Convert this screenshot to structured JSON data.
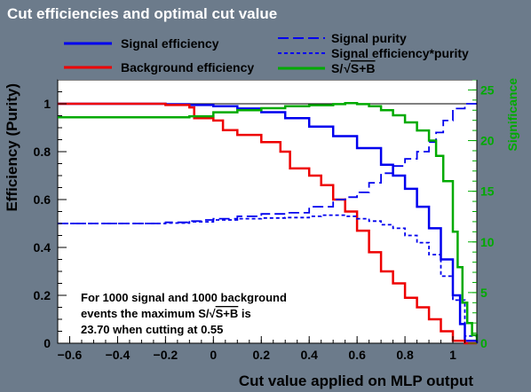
{
  "title": "Cut efficiencies and optimal cut value",
  "chart_data": {
    "type": "line",
    "title": "Cut efficiencies and optimal cut value",
    "xlabel": "Cut value applied on MLP output",
    "ylabel": "Efficiency (Purity)",
    "y2label": "Significance",
    "xlim": [
      -0.65,
      1.1
    ],
    "ylim": [
      0,
      1.1
    ],
    "y2lim": [
      0,
      26
    ],
    "xticks": [
      -0.6,
      -0.4,
      -0.2,
      0,
      0.2,
      0.4,
      0.6,
      0.8,
      1
    ],
    "xtick_labels": [
      "−0.6",
      "−0.4",
      "−0.2",
      "0",
      "0.2",
      "0.4",
      "0.6",
      "0.8",
      "1"
    ],
    "yticks": [
      0,
      0.2,
      0.4,
      0.6,
      0.8,
      1
    ],
    "ytick_labels": [
      "0",
      "0.2",
      "0.4",
      "0.6",
      "0.8",
      "1"
    ],
    "y2ticks": [
      0,
      5,
      10,
      15,
      20,
      25
    ],
    "y2tick_labels": [
      "0",
      "5",
      "10",
      "15",
      "20",
      "25"
    ],
    "legend_placement": "top",
    "colors": {
      "signal": "#0000ee",
      "background": "#ee0000",
      "significance": "#00aa00",
      "frame_bg": "#ffffff",
      "canvas_bg": "#6c7b8b"
    },
    "series": [
      {
        "name": "Signal efficiency",
        "color": "#0000ee",
        "style": "solid",
        "axis": "left",
        "x": [
          -0.65,
          -0.3,
          -0.2,
          -0.1,
          0,
          0.1,
          0.2,
          0.3,
          0.4,
          0.5,
          0.6,
          0.7,
          0.75,
          0.8,
          0.85,
          0.9,
          0.95,
          1.0,
          1.03,
          1.05,
          1.1
        ],
        "y": [
          1.0,
          1.0,
          0.998,
          0.995,
          0.99,
          0.98,
          0.965,
          0.94,
          0.905,
          0.865,
          0.815,
          0.745,
          0.7,
          0.645,
          0.57,
          0.48,
          0.35,
          0.2,
          0.08,
          0.01,
          0.0
        ]
      },
      {
        "name": "Background efficiency",
        "color": "#ee0000",
        "style": "solid",
        "axis": "left",
        "x": [
          -0.65,
          -0.2,
          -0.1,
          -0.08,
          0,
          0.04,
          0.1,
          0.2,
          0.28,
          0.32,
          0.4,
          0.45,
          0.5,
          0.55,
          0.6,
          0.65,
          0.7,
          0.75,
          0.8,
          0.85,
          0.9,
          0.95,
          1.0,
          1.05,
          1.1
        ],
        "y": [
          1.0,
          0.995,
          0.985,
          0.94,
          0.93,
          0.89,
          0.87,
          0.84,
          0.8,
          0.73,
          0.7,
          0.66,
          0.6,
          0.55,
          0.47,
          0.38,
          0.3,
          0.25,
          0.19,
          0.15,
          0.1,
          0.05,
          0.01,
          0.0,
          0.0
        ]
      },
      {
        "name": "Signal purity",
        "color": "#0000ee",
        "style": "longdash",
        "axis": "left",
        "x": [
          -0.65,
          -0.3,
          -0.2,
          -0.1,
          -0.05,
          0,
          0.1,
          0.2,
          0.3,
          0.4,
          0.5,
          0.55,
          0.6,
          0.65,
          0.7,
          0.75,
          0.8,
          0.85,
          0.9,
          0.93,
          0.96,
          1.0,
          1.05,
          1.1
        ],
        "y": [
          0.5,
          0.5,
          0.505,
          0.51,
          0.515,
          0.52,
          0.53,
          0.54,
          0.545,
          0.57,
          0.6,
          0.61,
          0.63,
          0.67,
          0.71,
          0.74,
          0.77,
          0.8,
          0.84,
          0.88,
          0.93,
          0.98,
          1.0,
          1.0
        ]
      },
      {
        "name": "Signal efficiency*purity",
        "color": "#0000ee",
        "style": "dashed",
        "axis": "left",
        "x": [
          -0.65,
          -0.3,
          -0.2,
          -0.1,
          0,
          0.1,
          0.2,
          0.3,
          0.4,
          0.45,
          0.5,
          0.55,
          0.6,
          0.65,
          0.7,
          0.75,
          0.8,
          0.85,
          0.9,
          0.95,
          1.0,
          1.05,
          1.1
        ],
        "y": [
          0.5,
          0.5,
          0.502,
          0.507,
          0.515,
          0.52,
          0.523,
          0.525,
          0.53,
          0.535,
          0.535,
          0.53,
          0.52,
          0.51,
          0.495,
          0.48,
          0.45,
          0.42,
          0.37,
          0.28,
          0.18,
          0.03,
          0.0
        ]
      },
      {
        "name": "S/√S+B",
        "color": "#00aa00",
        "style": "solid",
        "axis": "right",
        "x": [
          -0.65,
          -0.1,
          0,
          0.1,
          0.2,
          0.3,
          0.4,
          0.5,
          0.55,
          0.6,
          0.65,
          0.7,
          0.75,
          0.8,
          0.85,
          0.9,
          0.93,
          0.96,
          1.0,
          1.02,
          1.04,
          1.06,
          1.08,
          1.1
        ],
        "y": [
          22.3,
          22.4,
          22.8,
          23.0,
          23.2,
          23.4,
          23.5,
          23.6,
          23.7,
          23.6,
          23.4,
          23.0,
          22.5,
          21.8,
          21.0,
          20.0,
          18.5,
          16.0,
          11.0,
          7.5,
          4.0,
          2.0,
          0.8,
          0.3
        ]
      }
    ],
    "annotation": {
      "line1": "For 1000 signal and 1000 background",
      "line2_prefix": "events the maximum S/",
      "line2_root": "S+B",
      "line2_suffix": " is",
      "line3": "23.70 when cutting at  0.55"
    },
    "legend": {
      "signal_efficiency": "Signal efficiency",
      "background_efficiency": "Background efficiency",
      "signal_purity": "Signal purity",
      "signal_efficiency_purity": "Signal efficiency*purity",
      "significance_prefix": "S/",
      "significance_root": "S+B"
    }
  }
}
